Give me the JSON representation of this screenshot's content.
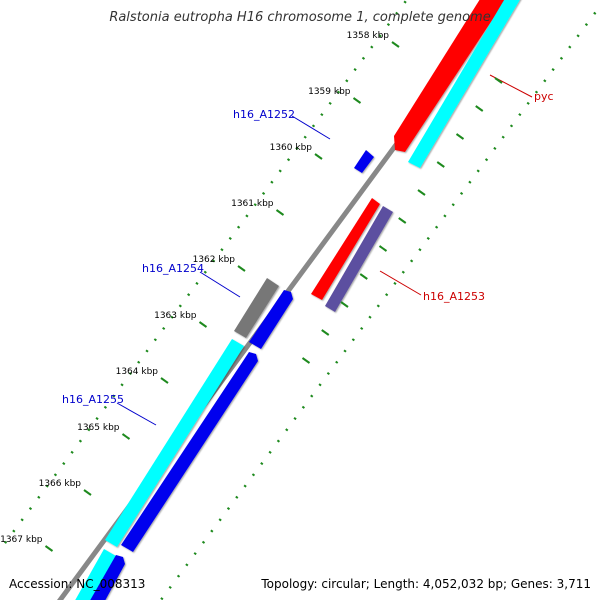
{
  "title": "Ralstonia eutropha H16 chromosome 1, complete genome",
  "accession": "Accession: NC_008313",
  "topology": "Topology: circular; Length: 4,052,032 bp; Genes: 3,711",
  "ticks": [
    {
      "label": "1358 kbp",
      "pos": 1358.0
    },
    {
      "label": "1359 kbp",
      "pos": 1359.0
    },
    {
      "label": "1360 kbp",
      "pos": 1360.0
    },
    {
      "label": "1361 kbp",
      "pos": 1361.0
    },
    {
      "label": "1362 kbp",
      "pos": 1362.0
    },
    {
      "label": "1363 kbp",
      "pos": 1363.0
    },
    {
      "label": "1364 kbp",
      "pos": 1364.0
    },
    {
      "label": "1365 kbp",
      "pos": 1365.0
    },
    {
      "label": "1366 kbp",
      "pos": 1366.0
    },
    {
      "label": "1367 kbp",
      "pos": 1367.0
    }
  ],
  "gene_labels": [
    {
      "name": "pyc",
      "color": "#cc0000"
    },
    {
      "name": "h16_A1252",
      "color": "#0000cc"
    },
    {
      "name": "h16_A1253",
      "color": "#cc0000"
    },
    {
      "name": "h16_A1254",
      "color": "#0000cc"
    },
    {
      "name": "h16_A1255",
      "color": "#0000cc"
    }
  ],
  "colors": {
    "backbone": "#888888",
    "tick_green": "#1e8a1e",
    "cds_forward_red": "#ff0000",
    "cds_blue": "#0000ee",
    "feature_cyan": "#00ffff",
    "feature_purple": "#5b4fa0",
    "feature_gray": "#777777"
  }
}
